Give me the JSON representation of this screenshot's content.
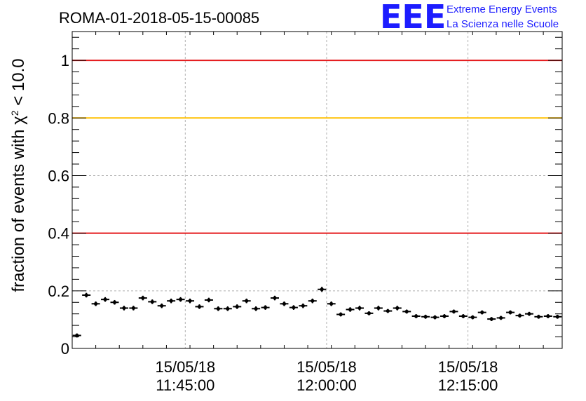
{
  "chart_data": {
    "type": "scatter",
    "title": "ROMA-01-2018-05-15-00085",
    "ylabel_prefix": "fraction of events with ",
    "ylabel_symbol": "χ",
    "ylabel_sup": "2",
    "ylabel_suffix": " < 10.0",
    "xlabel": "",
    "x_axis_type": "time",
    "xlim": [
      "2018-05-15 11:33:00",
      "2018-05-15 12:25:00"
    ],
    "ylim": [
      0,
      1.1
    ],
    "grid": true,
    "x_ticks": [
      {
        "x": "2018-05-15 11:45:00",
        "date_label": "15/05/18",
        "time_label": "11:45:00"
      },
      {
        "x": "2018-05-15 12:00:00",
        "date_label": "15/05/18",
        "time_label": "12:00:00"
      },
      {
        "x": "2018-05-15 12:15:00",
        "date_label": "15/05/18",
        "time_label": "12:15:00"
      }
    ],
    "y_ticks": [
      {
        "y": 0,
        "label": "0"
      },
      {
        "y": 0.2,
        "label": "0.2"
      },
      {
        "y": 0.4,
        "label": "0.4"
      },
      {
        "y": 0.6,
        "label": "0.6"
      },
      {
        "y": 0.8,
        "label": "0.8"
      },
      {
        "y": 1,
        "label": "1"
      }
    ],
    "reference_lines": [
      {
        "y": 1.0,
        "color": "#e41a1c"
      },
      {
        "y": 0.8,
        "color": "#ffc000"
      },
      {
        "y": 0.4,
        "color": "#e41a1c"
      }
    ],
    "series": [
      {
        "marker": "cross",
        "color": "#000000",
        "x": [
          "2018-05-15 11:33:30",
          "2018-05-15 11:34:30",
          "2018-05-15 11:35:30",
          "2018-05-15 11:36:30",
          "2018-05-15 11:37:30",
          "2018-05-15 11:38:30",
          "2018-05-15 11:39:30",
          "2018-05-15 11:40:30",
          "2018-05-15 11:41:30",
          "2018-05-15 11:42:30",
          "2018-05-15 11:43:30",
          "2018-05-15 11:44:30",
          "2018-05-15 11:45:30",
          "2018-05-15 11:46:30",
          "2018-05-15 11:47:30",
          "2018-05-15 11:48:30",
          "2018-05-15 11:49:30",
          "2018-05-15 11:50:30",
          "2018-05-15 11:51:30",
          "2018-05-15 11:52:30",
          "2018-05-15 11:53:30",
          "2018-05-15 11:54:30",
          "2018-05-15 11:55:30",
          "2018-05-15 11:56:30",
          "2018-05-15 11:57:30",
          "2018-05-15 11:58:30",
          "2018-05-15 11:59:30",
          "2018-05-15 12:00:30",
          "2018-05-15 12:01:30",
          "2018-05-15 12:02:30",
          "2018-05-15 12:03:30",
          "2018-05-15 12:04:30",
          "2018-05-15 12:05:30",
          "2018-05-15 12:06:30",
          "2018-05-15 12:07:30",
          "2018-05-15 12:08:30",
          "2018-05-15 12:09:30",
          "2018-05-15 12:10:30",
          "2018-05-15 12:11:30",
          "2018-05-15 12:12:30",
          "2018-05-15 12:13:30",
          "2018-05-15 12:14:30",
          "2018-05-15 12:15:30",
          "2018-05-15 12:16:30",
          "2018-05-15 12:17:30",
          "2018-05-15 12:18:30",
          "2018-05-15 12:19:30",
          "2018-05-15 12:20:30",
          "2018-05-15 12:21:30",
          "2018-05-15 12:22:30",
          "2018-05-15 12:23:30",
          "2018-05-15 12:24:30"
        ],
        "y": [
          0.045,
          0.185,
          0.155,
          0.17,
          0.16,
          0.14,
          0.14,
          0.175,
          0.162,
          0.148,
          0.165,
          0.17,
          0.165,
          0.145,
          0.168,
          0.138,
          0.138,
          0.145,
          0.165,
          0.138,
          0.142,
          0.175,
          0.155,
          0.142,
          0.148,
          0.165,
          0.205,
          0.155,
          0.118,
          0.135,
          0.14,
          0.122,
          0.14,
          0.13,
          0.14,
          0.128,
          0.112,
          0.11,
          0.108,
          0.112,
          0.128,
          0.112,
          0.108,
          0.125,
          0.102,
          0.106,
          0.125,
          0.114,
          0.12,
          0.11,
          0.112,
          0.11
        ],
        "y_err": [
          0.007,
          0.008,
          0.008,
          0.008,
          0.008,
          0.008,
          0.008,
          0.008,
          0.008,
          0.008,
          0.008,
          0.008,
          0.008,
          0.008,
          0.008,
          0.008,
          0.008,
          0.008,
          0.008,
          0.008,
          0.008,
          0.008,
          0.008,
          0.008,
          0.008,
          0.008,
          0.009,
          0.008,
          0.007,
          0.008,
          0.008,
          0.007,
          0.008,
          0.007,
          0.008,
          0.007,
          0.007,
          0.007,
          0.007,
          0.007,
          0.007,
          0.007,
          0.007,
          0.007,
          0.007,
          0.007,
          0.007,
          0.007,
          0.007,
          0.007,
          0.007,
          0.007
        ]
      }
    ]
  },
  "logo": {
    "mark": "EEE",
    "line1": "Extreme Energy Events",
    "line2": "La Scienza nelle Scuole"
  }
}
